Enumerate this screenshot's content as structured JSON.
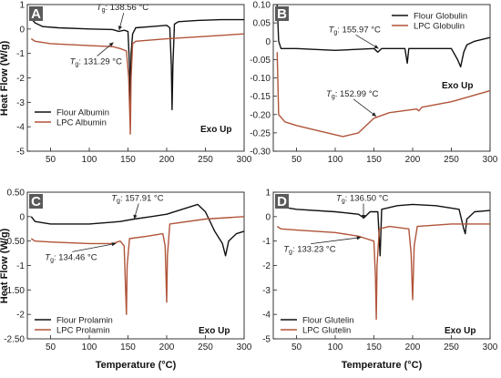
{
  "figure": {
    "ylabel": "Heat Flow (W/g)",
    "xlabel": "Temperature (°C)",
    "exo_label": "Exo Up",
    "colors": {
      "flour": "#111111",
      "lpc": "#b0543a",
      "panel_letter_bg": "#5a5a5a"
    }
  },
  "chart_data": [
    {
      "type": "line",
      "panel": "A",
      "xlim": [
        20,
        300
      ],
      "ylim": [
        -5,
        1
      ],
      "xticks": [
        50,
        100,
        150,
        200,
        250,
        300
      ],
      "yticks": [
        1,
        0,
        -1,
        -2,
        -3,
        -4,
        -5
      ],
      "annotations": [
        {
          "label": "T",
          "sub": "g",
          "text": ": 138.56 °C",
          "x": 138.56,
          "y": -0.05,
          "series": 0
        },
        {
          "label": "T",
          "sub": "g",
          "text": ": 131.29 °C",
          "x": 131.29,
          "y": -0.55,
          "series": 1
        }
      ],
      "series": [
        {
          "name": "Flour Albumin",
          "color": "#111111",
          "points": [
            [
              25,
              0.7
            ],
            [
              27,
              0.35
            ],
            [
              30,
              0.25
            ],
            [
              40,
              0.1
            ],
            [
              60,
              0.05
            ],
            [
              100,
              0.0
            ],
            [
              130,
              -0.02
            ],
            [
              138,
              -0.1
            ],
            [
              145,
              -0.05
            ],
            [
              150,
              -0.1
            ],
            [
              152,
              -1.5
            ],
            [
              153,
              -3.3
            ],
            [
              154,
              -1.0
            ],
            [
              156,
              -0.2
            ],
            [
              160,
              0.05
            ],
            [
              180,
              0.1
            ],
            [
              200,
              0.15
            ],
            [
              204,
              0.05
            ],
            [
              206,
              -1.5
            ],
            [
              207,
              -3.3
            ],
            [
              208,
              -1.5
            ],
            [
              210,
              0.2
            ],
            [
              215,
              0.3
            ],
            [
              240,
              0.35
            ],
            [
              270,
              0.38
            ],
            [
              300,
              0.38
            ]
          ]
        },
        {
          "name": "LPC Albumin",
          "color": "#b0543a",
          "points": [
            [
              25,
              -0.4
            ],
            [
              30,
              -0.5
            ],
            [
              50,
              -0.6
            ],
            [
              100,
              -0.68
            ],
            [
              130,
              -0.72
            ],
            [
              140,
              -0.8
            ],
            [
              148,
              -0.9
            ],
            [
              151,
              -2.0
            ],
            [
              153,
              -4.3
            ],
            [
              154,
              -2.0
            ],
            [
              156,
              -0.6
            ],
            [
              160,
              -0.5
            ],
            [
              200,
              -0.4
            ],
            [
              250,
              -0.3
            ],
            [
              300,
              -0.2
            ]
          ]
        }
      ]
    },
    {
      "type": "line",
      "panel": "B",
      "xlim": [
        20,
        300
      ],
      "ylim": [
        -0.3,
        0.1
      ],
      "xticks": [
        50,
        100,
        150,
        200,
        250,
        300
      ],
      "yticks": [
        0.1,
        0.05,
        0.0,
        -0.05,
        -0.1,
        -0.15,
        -0.2,
        -0.25,
        -0.3
      ],
      "annotations": [
        {
          "label": "T",
          "sub": "g",
          "text": ": 155.97 °C",
          "x": 155.97,
          "y": -0.02,
          "series": 0
        },
        {
          "label": "T",
          "sub": "g",
          "text": ": 152.99 °C",
          "x": 152.99,
          "y": -0.205,
          "series": 1
        }
      ],
      "series": [
        {
          "name": "Flour Globulin",
          "color": "#111111",
          "points": [
            [
              25,
              0.1
            ],
            [
              27,
              0.0
            ],
            [
              30,
              -0.02
            ],
            [
              50,
              -0.02
            ],
            [
              100,
              -0.025
            ],
            [
              150,
              -0.02
            ],
            [
              155,
              -0.03
            ],
            [
              160,
              -0.02
            ],
            [
              190,
              -0.02
            ],
            [
              193,
              -0.06
            ],
            [
              195,
              -0.02
            ],
            [
              200,
              -0.02
            ],
            [
              250,
              -0.02
            ],
            [
              258,
              -0.05
            ],
            [
              262,
              -0.07
            ],
            [
              266,
              -0.03
            ],
            [
              270,
              -0.01
            ],
            [
              280,
              0.0
            ],
            [
              300,
              0.01
            ]
          ]
        },
        {
          "name": "LPC Globulin",
          "color": "#b0543a",
          "points": [
            [
              25,
              -0.03
            ],
            [
              27,
              -0.2
            ],
            [
              35,
              -0.22
            ],
            [
              50,
              -0.23
            ],
            [
              80,
              -0.245
            ],
            [
              110,
              -0.26
            ],
            [
              130,
              -0.25
            ],
            [
              150,
              -0.21
            ],
            [
              170,
              -0.195
            ],
            [
              205,
              -0.185
            ],
            [
              208,
              -0.19
            ],
            [
              212,
              -0.18
            ],
            [
              250,
              -0.165
            ],
            [
              300,
              -0.135
            ]
          ]
        }
      ]
    },
    {
      "type": "line",
      "panel": "C",
      "xlim": [
        20,
        300
      ],
      "ylim": [
        -2.5,
        0.5
      ],
      "xticks": [
        50,
        100,
        150,
        200,
        250,
        300
      ],
      "yticks": [
        0.5,
        0.0,
        -0.5,
        -1.0,
        -1.5,
        -2.0,
        -2.5
      ],
      "annotations": [
        {
          "label": "T",
          "sub": "g",
          "text": ": 157.91 °C",
          "x": 157.91,
          "y": -0.05,
          "series": 0
        },
        {
          "label": "T",
          "sub": "g",
          "text": ": 134.46 °C",
          "x": 134.46,
          "y": -0.55,
          "series": 1
        }
      ],
      "series": [
        {
          "name": "Flour Prolamin",
          "color": "#111111",
          "points": [
            [
              25,
              0.0
            ],
            [
              30,
              -0.1
            ],
            [
              50,
              -0.15
            ],
            [
              100,
              -0.15
            ],
            [
              140,
              -0.1
            ],
            [
              158,
              -0.05
            ],
            [
              180,
              0.0
            ],
            [
              200,
              0.05
            ],
            [
              220,
              0.15
            ],
            [
              240,
              0.25
            ],
            [
              250,
              0.1
            ],
            [
              262,
              -0.3
            ],
            [
              272,
              -0.55
            ],
            [
              276,
              -0.8
            ],
            [
              280,
              -0.5
            ],
            [
              290,
              -0.35
            ],
            [
              300,
              -0.3
            ]
          ]
        },
        {
          "name": "LPC Prolamin",
          "color": "#b0543a",
          "points": [
            [
              25,
              -0.45
            ],
            [
              30,
              -0.5
            ],
            [
              50,
              -0.52
            ],
            [
              100,
              -0.55
            ],
            [
              130,
              -0.55
            ],
            [
              140,
              -0.5
            ],
            [
              145,
              -0.6
            ],
            [
              147,
              -1.5
            ],
            [
              148,
              -2.0
            ],
            [
              149,
              -1.0
            ],
            [
              152,
              -0.45
            ],
            [
              175,
              -0.4
            ],
            [
              195,
              -0.35
            ],
            [
              198,
              -0.6
            ],
            [
              200,
              -1.75
            ],
            [
              201,
              -0.8
            ],
            [
              204,
              -0.15
            ],
            [
              250,
              -0.05
            ],
            [
              300,
              0.0
            ]
          ]
        }
      ]
    },
    {
      "type": "line",
      "panel": "D",
      "xlim": [
        20,
        300
      ],
      "ylim": [
        -5,
        1
      ],
      "xticks": [
        50,
        100,
        150,
        200,
        250,
        300
      ],
      "yticks": [
        1,
        0,
        -1,
        -2,
        -3,
        -4,
        -5
      ],
      "annotations": [
        {
          "label": "T",
          "sub": "g",
          "text": ": 136.50 °C",
          "x": 136.5,
          "y": -0.1,
          "series": 0
        },
        {
          "label": "T",
          "sub": "g",
          "text": ": 133.23 °C",
          "x": 133.23,
          "y": -0.85,
          "series": 1
        }
      ],
      "series": [
        {
          "name": "Flour Glutelin",
          "color": "#111111",
          "points": [
            [
              25,
              0.6
            ],
            [
              30,
              0.4
            ],
            [
              50,
              0.3
            ],
            [
              100,
              0.2
            ],
            [
              130,
              0.1
            ],
            [
              137,
              -0.05
            ],
            [
              145,
              0.2
            ],
            [
              155,
              0.2
            ],
            [
              158,
              -1.6
            ],
            [
              160,
              0.3
            ],
            [
              180,
              0.45
            ],
            [
              200,
              0.5
            ],
            [
              230,
              0.45
            ],
            [
              260,
              0.3
            ],
            [
              266,
              -0.5
            ],
            [
              268,
              -0.7
            ],
            [
              270,
              -0.1
            ],
            [
              280,
              0.2
            ],
            [
              300,
              0.25
            ]
          ]
        },
        {
          "name": "LPC Glutelin",
          "color": "#b0543a",
          "points": [
            [
              25,
              -0.4
            ],
            [
              30,
              -0.5
            ],
            [
              50,
              -0.55
            ],
            [
              100,
              -0.65
            ],
            [
              130,
              -0.8
            ],
            [
              140,
              -0.9
            ],
            [
              150,
              -1.0
            ],
            [
              152,
              -2.5
            ],
            [
              153,
              -4.2
            ],
            [
              154,
              -2.0
            ],
            [
              157,
              -0.5
            ],
            [
              170,
              -0.4
            ],
            [
              195,
              -0.5
            ],
            [
              198,
              -1.5
            ],
            [
              200,
              -3.4
            ],
            [
              202,
              -1.2
            ],
            [
              206,
              -0.4
            ],
            [
              250,
              -0.3
            ],
            [
              300,
              -0.3
            ]
          ]
        }
      ]
    }
  ]
}
